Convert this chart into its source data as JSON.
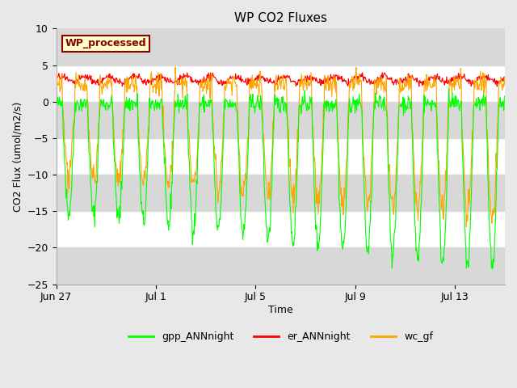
{
  "title": "WP CO2 Fluxes",
  "xlabel": "Time",
  "ylabel": "CO2 Flux (umol/m2/s)",
  "ylim": [
    -25,
    10
  ],
  "yticks": [
    -25,
    -20,
    -15,
    -10,
    -5,
    0,
    5,
    10
  ],
  "xtick_positions": [
    0,
    4,
    8,
    12,
    16
  ],
  "xtick_labels": [
    "Jun 27",
    "Jul 1",
    "Jul 5",
    "Jul 9",
    "Jul 13"
  ],
  "legend_labels": [
    "gpp_ANNnight",
    "er_ANNnight",
    "wc_gf"
  ],
  "legend_colors": [
    "#00ff00",
    "#ff0000",
    "#ffa500"
  ],
  "annotation_text": "WP_processed",
  "annotation_color": "#8b0000",
  "annotation_bg": "#ffffcc",
  "bg_color": "#e8e8e8",
  "plot_bg": "#ffffff",
  "band_color": "#d8d8d8",
  "n_days": 18,
  "n_per_day": 48,
  "gpp_color": "#00ff00",
  "er_color": "#ff0000",
  "wc_color": "#ffa500",
  "title_fontsize": 11,
  "axis_label_fontsize": 9,
  "tick_fontsize": 9
}
